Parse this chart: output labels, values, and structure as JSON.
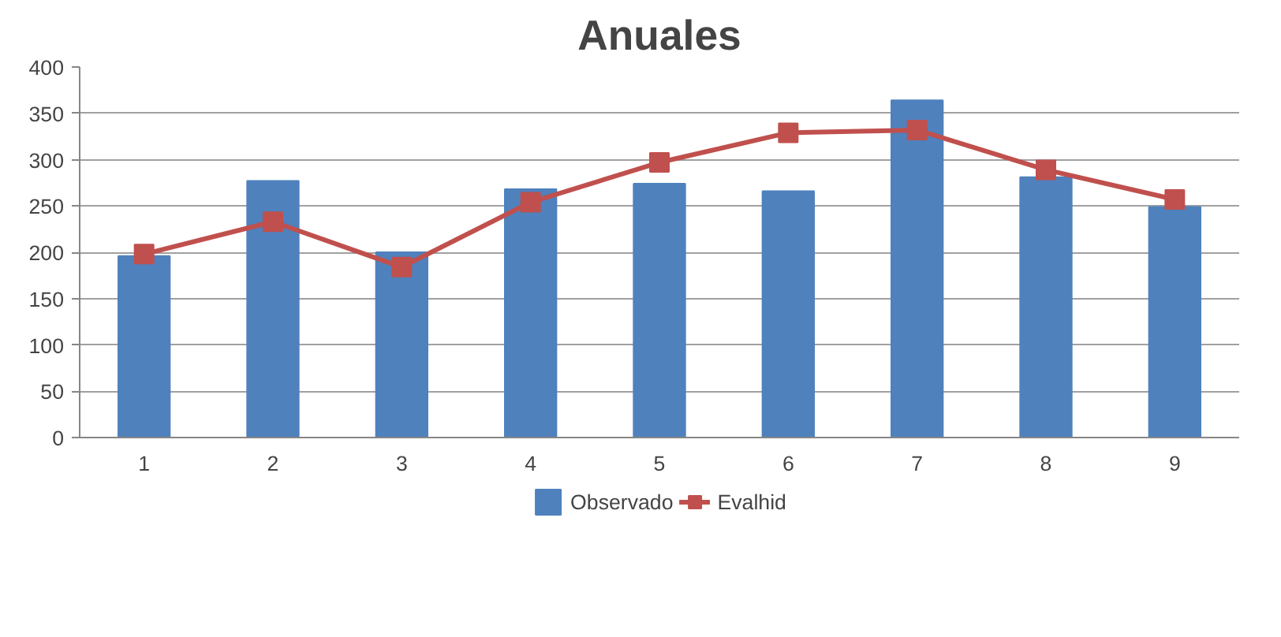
{
  "chart_data": {
    "type": "bar",
    "title": "Anuales",
    "categories": [
      "1",
      "2",
      "3",
      "4",
      "5",
      "6",
      "7",
      "8",
      "9"
    ],
    "series": [
      {
        "name": "Observado",
        "color": "#4f81bd",
        "values": [
          196,
          277,
          200,
          268,
          274,
          266,
          364,
          281,
          249
        ]
      },
      {
        "name": "Evalhid",
        "type": "line",
        "color": "#c0504d",
        "marker": "square",
        "values": [
          198,
          233,
          184,
          254,
          297,
          329,
          332,
          289,
          257
        ]
      }
    ],
    "ylim": [
      0,
      400
    ],
    "yticks": [
      0,
      50,
      100,
      150,
      200,
      250,
      300,
      350,
      400
    ],
    "grid": "y",
    "legend": "bottom"
  }
}
